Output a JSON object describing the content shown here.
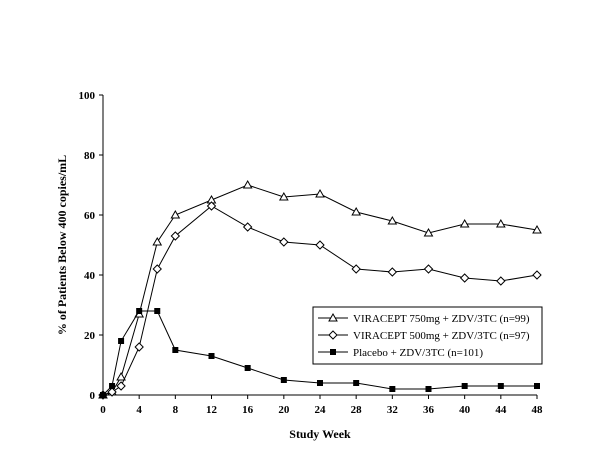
{
  "chart_data": {
    "type": "line",
    "title": "",
    "xlabel": "Study Week",
    "ylabel": "% of Patients Below 400 copies/mL",
    "xlim": [
      0,
      48
    ],
    "ylim": [
      0,
      100
    ],
    "xticks": [
      0,
      4,
      8,
      12,
      16,
      20,
      24,
      28,
      32,
      36,
      40,
      44,
      48
    ],
    "yticks": [
      0,
      20,
      40,
      60,
      80,
      100
    ],
    "grid": false,
    "legend_position": "lower-right",
    "series": [
      {
        "name": "VIRACEPT 750mg + ZDV/3TC (n=99)",
        "marker": "triangle-open",
        "color": "#000000",
        "x": [
          0,
          1,
          2,
          4,
          6,
          8,
          12,
          16,
          20,
          24,
          28,
          32,
          36,
          40,
          44,
          48
        ],
        "y": [
          0,
          1,
          6,
          27,
          51,
          60,
          65,
          70,
          66,
          67,
          61,
          58,
          54,
          57,
          57,
          55
        ]
      },
      {
        "name": "VIRACEPT 500mg + ZDV/3TC (n=97)",
        "marker": "diamond-open",
        "color": "#000000",
        "x": [
          0,
          1,
          2,
          4,
          6,
          8,
          12,
          16,
          20,
          24,
          28,
          32,
          36,
          40,
          44,
          48
        ],
        "y": [
          0,
          1,
          3,
          16,
          42,
          53,
          63,
          56,
          51,
          50,
          42,
          41,
          42,
          39,
          38,
          40
        ]
      },
      {
        "name": "Placebo + ZDV/3TC (n=101)",
        "marker": "square-filled",
        "color": "#000000",
        "x": [
          0,
          1,
          2,
          4,
          6,
          8,
          12,
          16,
          20,
          24,
          28,
          32,
          36,
          40,
          44,
          48
        ],
        "y": [
          0,
          3,
          18,
          28,
          28,
          15,
          13,
          9,
          5,
          4,
          4,
          2,
          2,
          3,
          3,
          3
        ]
      }
    ]
  }
}
